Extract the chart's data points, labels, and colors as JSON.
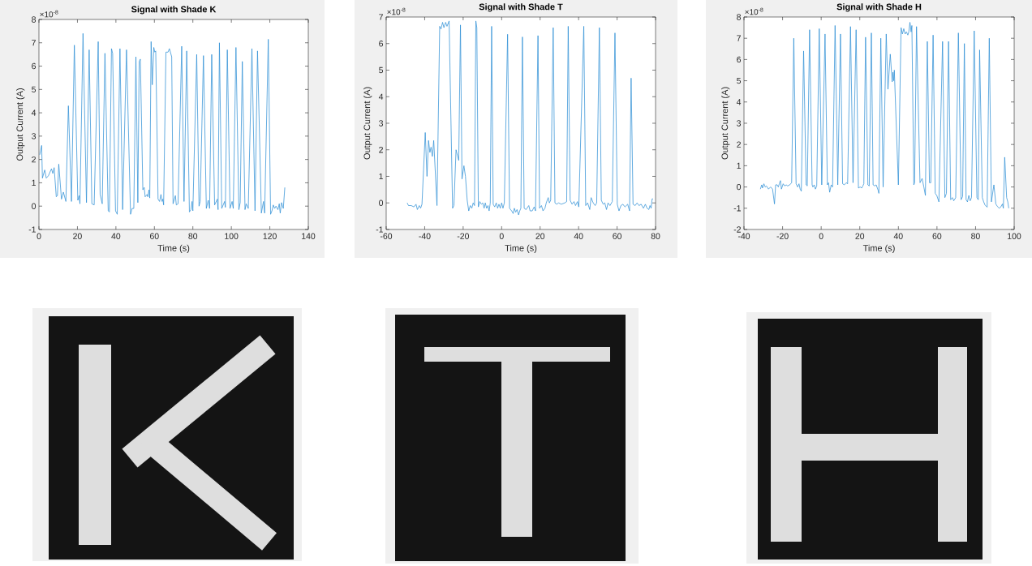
{
  "chart_data": [
    {
      "type": "line",
      "title": "Signal with Shade K",
      "xlabel": "Time (s)",
      "ylabel": "Output Current (A)",
      "annotations": [
        "×10$^{-8}$"
      ],
      "color": "#2f8fd5",
      "x": [
        0.4,
        1.4,
        1.8,
        3.0,
        3.8,
        4.9,
        6.5,
        7.2,
        7.9,
        9.0,
        9.6,
        10.3,
        11.7,
        12.7,
        14.0,
        15.3,
        16.9,
        18.4,
        20.2,
        20.9,
        21.3,
        22.9,
        24.7,
        26.1,
        27.5,
        28.7,
        30.8,
        31.8,
        32.9,
        34.3,
        36.0,
        36.6,
        37.7,
        38.3,
        39.8,
        40.7,
        42.1,
        43.5,
        45.5,
        47.6,
        48.4,
        49.3,
        50.4,
        51.4,
        52.1,
        52.7,
        54.0,
        54.7,
        55.2,
        56.2,
        56.6,
        57.2,
        57.6,
        58.3,
        58.9,
        59.7,
        60.2,
        60.7,
        61.9,
        62.7,
        63.4,
        64.0,
        64.4,
        64.8,
        66.0,
        67.1,
        67.8,
        69.0,
        69.7,
        70.9,
        71.4,
        72.3,
        74.2,
        75.4,
        76.8,
        78.2,
        79.0,
        79.6,
        80.0,
        82.0,
        83.2,
        83.8,
        85.5,
        87.0,
        88.0,
        88.7,
        89.8,
        91.3,
        92.7,
        93.1,
        93.8,
        95.0,
        96.5,
        96.9,
        97.9,
        99.3,
        100.4,
        101.0,
        102.4,
        103.9,
        104.6,
        105.7,
        107.1,
        107.7,
        108.8,
        110.7,
        112.3,
        113.6,
        115.6,
        116.7,
        117.3,
        119.2,
        120.4,
        121.1,
        121.8,
        122.5,
        123.2,
        124.2,
        124.9,
        125.4,
        126.1,
        127.0,
        127.8
      ],
      "values": [
        2.2,
        2.6,
        1.2,
        1.55,
        1.2,
        1.3,
        1.6,
        1.4,
        1.65,
        0.4,
        0.45,
        1.8,
        0.3,
        0.6,
        0.2,
        4.3,
        0.2,
        6.9,
        0.25,
        0.45,
        0.1,
        7.4,
        0.15,
        6.7,
        0.1,
        0.05,
        7.05,
        0.5,
        0.1,
        6.55,
        -0.2,
        -0.25,
        6.75,
        6.55,
        -0.2,
        -0.35,
        6.75,
        -0.15,
        6.7,
        -0.35,
        -0.1,
        -0.1,
        6.4,
        0.15,
        6.2,
        6.3,
        0.7,
        0.8,
        0.4,
        0.5,
        0.4,
        0.7,
        0.35,
        7.05,
        5.2,
        6.8,
        6.6,
        6.65,
        0.3,
        0.2,
        0.5,
        0.2,
        0.3,
        0.05,
        6.6,
        6.6,
        6.75,
        6.4,
        0.1,
        0.45,
        0.05,
        0.1,
        6.85,
        0.2,
        6.65,
        -0.25,
        -0.15,
        0.2,
        -0.2,
        6.5,
        0.0,
        0.2,
        6.45,
        -0.1,
        0.25,
        -0.1,
        6.5,
        0.05,
        0.3,
        -0.15,
        7.0,
        -0.1,
        0.2,
        -0.05,
        6.7,
        -0.1,
        0.2,
        -0.1,
        6.8,
        -0.15,
        0.15,
        6.2,
        -0.15,
        0.1,
        -0.1,
        6.75,
        -0.2,
        6.65,
        -0.3,
        0.2,
        -0.3,
        7.15,
        -0.35,
        -0.2,
        0.05,
        -0.1,
        0.0,
        -0.15,
        0.1,
        -0.3,
        0.15,
        -0.1,
        0.8
      ],
      "xlim": [
        0,
        140
      ],
      "ylim": [
        -1,
        8
      ],
      "xticks": [
        0,
        20,
        40,
        60,
        80,
        100,
        120,
        140
      ],
      "yticks": [
        -1,
        0,
        1,
        2,
        3,
        4,
        5,
        6,
        7,
        8
      ]
    },
    {
      "type": "line",
      "title": "Signal with Shade T",
      "xlabel": "Time (s)",
      "ylabel": "Output Current (A)",
      "annotations": [
        "×10$^{-8}$"
      ],
      "color": "#2f8fd5",
      "x": [
        -49.1,
        -48.4,
        -47.0,
        -45.6,
        -44.5,
        -43.8,
        -42.8,
        -42.1,
        -41.4,
        -39.7,
        -38.8,
        -38.0,
        -37.3,
        -36.7,
        -36.0,
        -35.3,
        -33.6,
        -32.2,
        -31.5,
        -30.7,
        -30.0,
        -29.1,
        -28.4,
        -27.3,
        -25.5,
        -24.8,
        -23.7,
        -22.3,
        -21.4,
        -20.6,
        -19.6,
        -18.8,
        -17.9,
        -17.1,
        -16.3,
        -15.5,
        -14.8,
        -14.1,
        -13.4,
        -12.9,
        -12.1,
        -11.4,
        -10.5,
        -9.8,
        -9.1,
        -8.5,
        -7.8,
        -7.1,
        -6.5,
        -5.9,
        -5.2,
        -4.4,
        -3.6,
        -2.8,
        -2.1,
        -1.4,
        -0.7,
        0.0,
        0.7,
        1.4,
        3.1,
        4.1,
        5.2,
        6.0,
        6.6,
        7.3,
        8.0,
        8.8,
        9.4,
        10.0,
        10.8,
        11.7,
        12.7,
        14.1,
        14.8,
        15.9,
        16.9,
        17.6,
        18.9,
        19.7,
        20.7,
        21.5,
        22.5,
        23.2,
        24.2,
        24.8,
        25.5,
        26.8,
        27.7,
        28.6,
        29.6,
        31.0,
        32.8,
        33.8,
        34.6,
        35.6,
        36.6,
        37.6,
        38.4,
        39.4,
        40.1,
        42.7,
        43.7,
        44.7,
        45.8,
        46.5,
        47.6,
        48.6,
        49.4,
        50.8,
        51.8,
        52.8,
        53.6,
        54.5,
        55.3,
        56.3,
        57.5,
        58.9,
        60.1,
        61.0,
        62.0,
        63.0,
        64.1,
        65.5,
        66.5,
        67.3,
        68.3,
        69.4,
        70.4,
        71.4,
        72.5,
        73.7,
        74.7,
        75.6,
        76.5,
        77.1,
        77.7,
        78.2,
        78.7
      ],
      "values": [
        0.0,
        -0.1,
        -0.1,
        -0.15,
        -0.05,
        -0.25,
        -0.1,
        -0.2,
        -0.05,
        2.65,
        1.0,
        2.35,
        1.9,
        2.1,
        1.75,
        2.35,
        -0.1,
        6.65,
        6.55,
        6.8,
        6.6,
        6.8,
        6.65,
        6.85,
        -0.2,
        -0.1,
        2.0,
        1.6,
        6.7,
        0.9,
        1.4,
        1.0,
        0.1,
        -0.3,
        -0.1,
        -0.2,
        0.0,
        -0.1,
        6.85,
        6.6,
        -0.15,
        0.05,
        -0.05,
        0.0,
        -0.2,
        0.0,
        -0.2,
        -0.1,
        -0.3,
        0.0,
        6.65,
        -0.05,
        -0.15,
        0.0,
        -0.2,
        -0.05,
        -0.2,
        0.0,
        -0.2,
        0.0,
        6.35,
        -0.2,
        -0.3,
        -0.4,
        -0.2,
        -0.35,
        -0.25,
        -0.45,
        -0.3,
        -0.2,
        6.25,
        -0.2,
        -0.25,
        -0.1,
        -0.3,
        -0.3,
        -0.15,
        -0.3,
        6.3,
        -0.2,
        -0.1,
        -0.3,
        -0.2,
        0.0,
        0.2,
        0.0,
        0.1,
        6.6,
        0.0,
        -0.05,
        0.0,
        -0.05,
        0.0,
        0.05,
        6.65,
        0.1,
        -0.05,
        0.05,
        -0.1,
        0.05,
        -0.15,
        6.65,
        -0.1,
        0.0,
        -0.25,
        0.2,
        0.0,
        -0.1,
        0.0,
        6.6,
        0.1,
        -0.05,
        0.0,
        -0.25,
        0.0,
        -0.1,
        0.05,
        6.4,
        -0.05,
        -0.3,
        -0.1,
        -0.05,
        -0.15,
        -0.05,
        -0.3,
        4.7,
        -0.05,
        -0.1,
        0.0,
        -0.1,
        -0.05,
        -0.2,
        -0.05,
        -0.2,
        -0.25,
        -0.1,
        -0.2,
        0.15,
        0.15
      ],
      "xlim": [
        -60,
        80
      ],
      "ylim": [
        -1,
        7
      ],
      "xticks": [
        -60,
        -40,
        -20,
        0,
        20,
        40,
        60,
        80
      ],
      "yticks": [
        -1,
        0,
        1,
        2,
        3,
        4,
        5,
        6,
        7
      ]
    },
    {
      "type": "line",
      "title": "Signal with Shade H",
      "xlabel": "Time (s)",
      "ylabel": "Output Current (A)",
      "annotations": [
        "×10$^{-8}$"
      ],
      "color": "#2f8fd5",
      "x": [
        -31.5,
        -30.8,
        -30.4,
        -29.7,
        -29.0,
        -28.4,
        -27.3,
        -26.2,
        -25.2,
        -24.2,
        -23.6,
        -22.8,
        -22.2,
        -21.7,
        -21.1,
        -20.6,
        -19.7,
        -18.9,
        -18.1,
        -17.4,
        -16.3,
        -15.3,
        -14.2,
        -13.0,
        -12.2,
        -11.5,
        -10.9,
        -10.3,
        -9.1,
        -7.8,
        -7.2,
        -6.0,
        -4.7,
        -4.3,
        -3.6,
        -3.0,
        -2.3,
        -1.0,
        0.3,
        2.0,
        3.2,
        3.8,
        4.4,
        5.2,
        5.9,
        7.2,
        8.6,
        10.0,
        11.1,
        12.0,
        13.0,
        13.7,
        15.2,
        16.5,
        18.1,
        19.3,
        20.2,
        21.0,
        21.6,
        22.1,
        23.0,
        24.2,
        24.9,
        26.0,
        26.9,
        27.7,
        28.5,
        29.5,
        29.9,
        30.9,
        32.1,
        33.7,
        34.6,
        35.8,
        36.8,
        37.2,
        37.6,
        37.9,
        40.0,
        41.4,
        42.1,
        42.8,
        43.5,
        44.2,
        44.9,
        45.4,
        46.0,
        46.6,
        47.0,
        48.0,
        48.4,
        49.4,
        51.2,
        52.3,
        53.2,
        54.0,
        55.0,
        56.1,
        56.8,
        58.0,
        59.1,
        59.9,
        61.0,
        62.9,
        64.1,
        64.9,
        66.0,
        67.1,
        68.0,
        68.7,
        69.7,
        71.1,
        72.5,
        73.3,
        74.2,
        75.1,
        75.8,
        76.5,
        77.2,
        77.9,
        79.3,
        80.7,
        81.4,
        82.1,
        83.5,
        84.2,
        84.9,
        86.0,
        87.1,
        88.2,
        89.5,
        90.5,
        91.2,
        92.2,
        93.0,
        93.9,
        94.4,
        95.1,
        96.1,
        96.7,
        97.2
      ],
      "values": [
        -0.1,
        0.1,
        -0.05,
        0.15,
        0.0,
        0.05,
        -0.1,
        0.0,
        -0.1,
        -0.8,
        0.1,
        0.1,
        0.0,
        0.15,
        0.3,
        -0.1,
        0.15,
        0.05,
        0.1,
        0.05,
        0.1,
        0.2,
        7.0,
        0.15,
        0.0,
        0.15,
        -0.1,
        -0.2,
        6.4,
        0.1,
        0.05,
        7.4,
        0.1,
        0.0,
        0.1,
        -0.1,
        0.05,
        7.45,
        0.1,
        7.2,
        0.1,
        0.2,
        -0.25,
        0.1,
        0.0,
        7.6,
        0.1,
        7.2,
        0.15,
        0.1,
        0.2,
        0.15,
        7.55,
        0.2,
        7.4,
        -0.05,
        0.0,
        -0.05,
        0.05,
        0.15,
        7.05,
        0.1,
        0.05,
        7.25,
        0.1,
        0.05,
        0.1,
        -0.15,
        -0.3,
        7.0,
        0.0,
        7.2,
        4.6,
        6.25,
        4.95,
        5.4,
        5.0,
        5.5,
        0.1,
        7.5,
        7.2,
        7.45,
        7.2,
        7.3,
        7.15,
        7.3,
        7.75,
        7.3,
        7.6,
        0.1,
        0.2,
        7.55,
        0.2,
        0.4,
        0.0,
        -0.4,
        6.85,
        0.2,
        0.2,
        7.15,
        -0.3,
        -0.4,
        -0.7,
        6.85,
        -0.5,
        -0.3,
        6.85,
        -0.6,
        -0.5,
        -0.65,
        -0.5,
        7.25,
        -0.6,
        -0.45,
        6.75,
        -0.6,
        -0.7,
        -0.4,
        -0.65,
        -0.5,
        7.35,
        -0.5,
        -0.6,
        6.45,
        -0.5,
        -0.7,
        -0.85,
        -0.95,
        7.0,
        -0.7,
        0.1,
        -0.8,
        -0.9,
        -1.0,
        -0.95,
        -0.8,
        -1.0,
        1.4,
        -0.5,
        -0.7,
        -1.0
      ],
      "xlim": [
        -40,
        100
      ],
      "ylim": [
        -2,
        8
      ],
      "xticks": [
        -40,
        -20,
        0,
        20,
        40,
        60,
        80,
        100
      ],
      "yticks": [
        -2,
        -1,
        0,
        1,
        2,
        3,
        4,
        5,
        6,
        7,
        8
      ]
    }
  ]
}
